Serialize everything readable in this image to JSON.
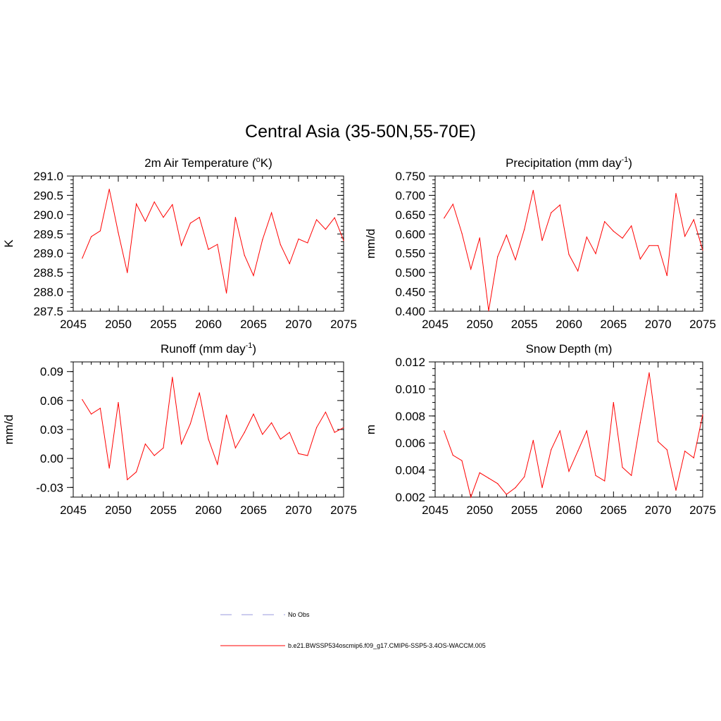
{
  "figure": {
    "title": "Central Asia (35-50N,55-70E)"
  },
  "legend": {
    "entries": [
      {
        "label": "No Obs",
        "style": "dashed",
        "color": "#9999dd"
      },
      {
        "label": "b.e21.BWSSP534oscmip6.f09_g17.CMIP6-SSP5-3.4OS-WACCM.005",
        "style": "solid",
        "color": "#ff0000"
      }
    ]
  },
  "chart_data": [
    {
      "type": "line",
      "title_main": "2m Air Temperature (",
      "title_sup1": "o",
      "title_rest": "K)",
      "ylabel": "K",
      "xlim": [
        2045,
        2075
      ],
      "xticks": [
        2045,
        2050,
        2055,
        2060,
        2065,
        2070,
        2075
      ],
      "xtick_labels": [
        "2045",
        "2050",
        "2055",
        "2060",
        "2065",
        "2070",
        "2075"
      ],
      "ylim": [
        287.5,
        291.0
      ],
      "yticks": [
        287.5,
        288.0,
        288.5,
        289.0,
        289.5,
        290.0,
        290.5,
        291.0
      ],
      "ytick_labels": [
        "287.5",
        "288.0",
        "288.5",
        "289.0",
        "289.5",
        "290.0",
        "290.5",
        "291.0"
      ],
      "yminor": 0.1,
      "series": [
        {
          "name": "b.e21.BWSSP534oscmip6.f09_g17.CMIP6-SSP5-3.4OS-WACCM.005",
          "color": "#ff0000",
          "x": [
            2046,
            2047,
            2048,
            2049,
            2050,
            2051,
            2052,
            2053,
            2054,
            2055,
            2056,
            2057,
            2058,
            2059,
            2060,
            2061,
            2062,
            2063,
            2064,
            2065,
            2066,
            2067,
            2068,
            2069,
            2070,
            2071,
            2072,
            2073,
            2074,
            2075
          ],
          "values": [
            288.87,
            289.43,
            289.58,
            290.66,
            289.53,
            288.5,
            290.28,
            289.83,
            290.33,
            289.93,
            290.26,
            289.2,
            289.78,
            289.93,
            289.1,
            289.23,
            287.97,
            289.93,
            288.95,
            288.42,
            289.35,
            290.05,
            289.22,
            288.73,
            289.37,
            289.27,
            289.87,
            289.62,
            289.92,
            289.33
          ]
        }
      ]
    },
    {
      "type": "line",
      "title_main": "Precipitation (mm day",
      "title_sup1": "-1",
      "title_rest": ")",
      "ylabel": "mm/d",
      "xlim": [
        2045,
        2075
      ],
      "xticks": [
        2045,
        2050,
        2055,
        2060,
        2065,
        2070,
        2075
      ],
      "xtick_labels": [
        "2045",
        "2050",
        "2055",
        "2060",
        "2065",
        "2070",
        "2075"
      ],
      "ylim": [
        0.4,
        0.75
      ],
      "yticks": [
        0.4,
        0.45,
        0.5,
        0.55,
        0.6,
        0.65,
        0.7,
        0.75
      ],
      "ytick_labels": [
        "0.400",
        "0.450",
        "0.500",
        "0.550",
        "0.600",
        "0.650",
        "0.700",
        "0.750"
      ],
      "yminor": 0.01,
      "series": [
        {
          "name": "b.e21.BWSSP534oscmip6.f09_g17.CMIP6-SSP5-3.4OS-WACCM.005",
          "color": "#ff0000",
          "x": [
            2046,
            2047,
            2048,
            2049,
            2050,
            2051,
            2052,
            2053,
            2054,
            2055,
            2056,
            2057,
            2058,
            2059,
            2060,
            2061,
            2062,
            2063,
            2064,
            2065,
            2066,
            2067,
            2068,
            2069,
            2070,
            2071,
            2072,
            2073,
            2074,
            2075
          ],
          "values": [
            0.641,
            0.677,
            0.602,
            0.509,
            0.59,
            0.401,
            0.541,
            0.597,
            0.533,
            0.612,
            0.713,
            0.583,
            0.655,
            0.675,
            0.547,
            0.504,
            0.592,
            0.549,
            0.632,
            0.607,
            0.589,
            0.621,
            0.535,
            0.57,
            0.57,
            0.492,
            0.705,
            0.594,
            0.637,
            0.558
          ]
        }
      ]
    },
    {
      "type": "line",
      "title_main": "Runoff (mm day",
      "title_sup1": "-1",
      "title_rest": ")",
      "ylabel": "mm/d",
      "xlim": [
        2045,
        2075
      ],
      "xticks": [
        2045,
        2050,
        2055,
        2060,
        2065,
        2070,
        2075
      ],
      "xtick_labels": [
        "2045",
        "2050",
        "2055",
        "2060",
        "2065",
        "2070",
        "2075"
      ],
      "ylim": [
        -0.04,
        0.1
      ],
      "yticks": [
        -0.03,
        0.0,
        0.03,
        0.06,
        0.09
      ],
      "ytick_labels": [
        "-0.03",
        "0.00",
        "0.03",
        "0.06",
        "0.09"
      ],
      "yminor": 0.01,
      "series": [
        {
          "name": "b.e21.BWSSP534oscmip6.f09_g17.CMIP6-SSP5-3.4OS-WACCM.005",
          "color": "#ff0000",
          "x": [
            2046,
            2047,
            2048,
            2049,
            2050,
            2051,
            2052,
            2053,
            2054,
            2055,
            2056,
            2057,
            2058,
            2059,
            2060,
            2061,
            2062,
            2063,
            2064,
            2065,
            2066,
            2067,
            2068,
            2069,
            2070,
            2071,
            2072,
            2073,
            2074,
            2075
          ],
          "values": [
            0.061,
            0.046,
            0.052,
            -0.01,
            0.058,
            -0.022,
            -0.014,
            0.015,
            0.003,
            0.011,
            0.084,
            0.015,
            0.036,
            0.068,
            0.02,
            -0.006,
            0.045,
            0.011,
            0.027,
            0.046,
            0.025,
            0.037,
            0.02,
            0.027,
            0.005,
            0.003,
            0.032,
            0.048,
            0.027,
            0.032
          ]
        }
      ]
    },
    {
      "type": "line",
      "title_main": "Snow Depth (m)",
      "title_sup1": "",
      "title_rest": "",
      "ylabel": "m",
      "xlim": [
        2045,
        2075
      ],
      "xticks": [
        2045,
        2050,
        2055,
        2060,
        2065,
        2070,
        2075
      ],
      "xtick_labels": [
        "2045",
        "2050",
        "2055",
        "2060",
        "2065",
        "2070",
        "2075"
      ],
      "ylim": [
        0.002,
        0.012
      ],
      "yticks": [
        0.002,
        0.004,
        0.006,
        0.008,
        0.01,
        0.012
      ],
      "ytick_labels": [
        "0.002",
        "0.004",
        "0.006",
        "0.008",
        "0.010",
        "0.012"
      ],
      "yminor": 0.0005,
      "series": [
        {
          "name": "b.e21.BWSSP534oscmip6.f09_g17.CMIP6-SSP5-3.4OS-WACCM.005",
          "color": "#ff0000",
          "x": [
            2046,
            2047,
            2048,
            2049,
            2050,
            2051,
            2052,
            2053,
            2054,
            2055,
            2056,
            2057,
            2058,
            2059,
            2060,
            2061,
            2062,
            2063,
            2064,
            2065,
            2066,
            2067,
            2068,
            2069,
            2070,
            2071,
            2072,
            2073,
            2074,
            2075
          ],
          "values": [
            0.0069,
            0.0051,
            0.0047,
            0.002,
            0.0038,
            0.0034,
            0.003,
            0.0022,
            0.0027,
            0.0035,
            0.0062,
            0.0027,
            0.0055,
            0.0069,
            0.0039,
            0.0054,
            0.0069,
            0.0036,
            0.0032,
            0.009,
            0.0042,
            0.0036,
            0.0075,
            0.0112,
            0.0061,
            0.0055,
            0.0025,
            0.0054,
            0.0049,
            0.0081
          ]
        }
      ]
    }
  ]
}
